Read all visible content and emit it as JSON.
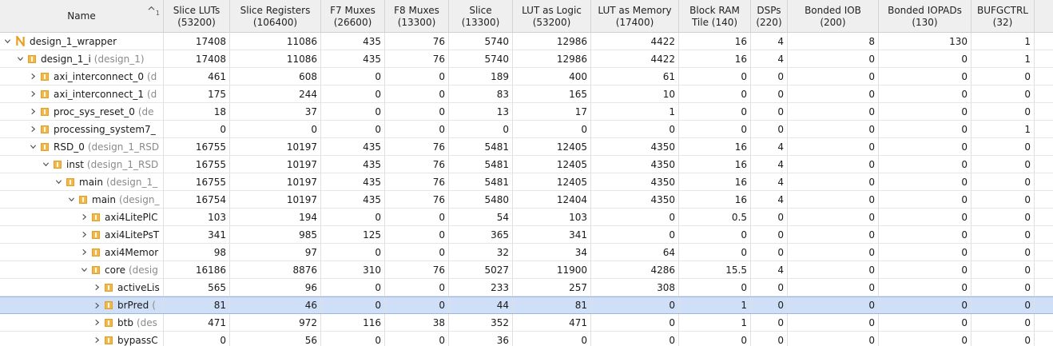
{
  "columns": [
    {
      "label": "Name"
    },
    {
      "label": "Slice LUTs\n(53200)"
    },
    {
      "label": "Slice Registers\n(106400)"
    },
    {
      "label": "F7 Muxes\n(26600)"
    },
    {
      "label": "F8 Muxes\n(13300)"
    },
    {
      "label": "Slice\n(13300)"
    },
    {
      "label": "LUT as Logic\n(53200)"
    },
    {
      "label": "LUT as Memory\n(17400)"
    },
    {
      "label": "Block RAM\nTile (140)"
    },
    {
      "label": "DSPs\n(220)"
    },
    {
      "label": "Bonded IOB\n(200)"
    },
    {
      "label": "Bonded IOPADs\n(130)"
    },
    {
      "label": "BUFGCTRL\n(32)"
    }
  ],
  "sort_index": "1",
  "rows": [
    {
      "depth": 0,
      "icon": "top",
      "name": "design_1_wrapper",
      "module": "",
      "vals": [
        "17408",
        "11086",
        "435",
        "76",
        "5740",
        "12986",
        "4422",
        "16",
        "4",
        "8",
        "130",
        "1"
      ],
      "expanded": true,
      "selected": false
    },
    {
      "depth": 1,
      "icon": "inst",
      "name": "design_1_i",
      "module": "(design_1)",
      "vals": [
        "17408",
        "11086",
        "435",
        "76",
        "5740",
        "12986",
        "4422",
        "16",
        "4",
        "0",
        "0",
        "1"
      ],
      "expanded": true,
      "selected": false
    },
    {
      "depth": 2,
      "icon": "inst",
      "name": "axi_interconnect_0",
      "module": "(d",
      "vals": [
        "461",
        "608",
        "0",
        "0",
        "189",
        "400",
        "61",
        "0",
        "0",
        "0",
        "0",
        "0"
      ],
      "expanded": false,
      "selected": false
    },
    {
      "depth": 2,
      "icon": "inst",
      "name": "axi_interconnect_1",
      "module": "(d",
      "vals": [
        "175",
        "244",
        "0",
        "0",
        "83",
        "165",
        "10",
        "0",
        "0",
        "0",
        "0",
        "0"
      ],
      "expanded": false,
      "selected": false
    },
    {
      "depth": 2,
      "icon": "inst",
      "name": "proc_sys_reset_0",
      "module": "(de",
      "vals": [
        "18",
        "37",
        "0",
        "0",
        "13",
        "17",
        "1",
        "0",
        "0",
        "0",
        "0",
        "0"
      ],
      "expanded": false,
      "selected": false
    },
    {
      "depth": 2,
      "icon": "inst",
      "name": "processing_system7_",
      "module": "",
      "vals": [
        "0",
        "0",
        "0",
        "0",
        "0",
        "0",
        "0",
        "0",
        "0",
        "0",
        "0",
        "1"
      ],
      "expanded": false,
      "selected": false
    },
    {
      "depth": 2,
      "icon": "inst",
      "name": "RSD_0",
      "module": "(design_1_RSD",
      "vals": [
        "16755",
        "10197",
        "435",
        "76",
        "5481",
        "12405",
        "4350",
        "16",
        "4",
        "0",
        "0",
        "0"
      ],
      "expanded": true,
      "selected": false
    },
    {
      "depth": 3,
      "icon": "inst",
      "name": "inst",
      "module": "(design_1_RSD",
      "vals": [
        "16755",
        "10197",
        "435",
        "76",
        "5481",
        "12405",
        "4350",
        "16",
        "4",
        "0",
        "0",
        "0"
      ],
      "expanded": true,
      "selected": false
    },
    {
      "depth": 4,
      "icon": "inst",
      "name": "main",
      "module": "(design_1_",
      "vals": [
        "16755",
        "10197",
        "435",
        "76",
        "5481",
        "12405",
        "4350",
        "16",
        "4",
        "0",
        "0",
        "0"
      ],
      "expanded": true,
      "selected": false
    },
    {
      "depth": 5,
      "icon": "inst",
      "name": "main",
      "module": "(design_",
      "vals": [
        "16754",
        "10197",
        "435",
        "76",
        "5480",
        "12404",
        "4350",
        "16",
        "4",
        "0",
        "0",
        "0"
      ],
      "expanded": true,
      "selected": false
    },
    {
      "depth": 6,
      "icon": "inst",
      "name": "axi4LitePlC",
      "module": "",
      "vals": [
        "103",
        "194",
        "0",
        "0",
        "54",
        "103",
        "0",
        "0.5",
        "0",
        "0",
        "0",
        "0"
      ],
      "expanded": false,
      "selected": false
    },
    {
      "depth": 6,
      "icon": "inst",
      "name": "axi4LitePsT",
      "module": "",
      "vals": [
        "341",
        "985",
        "125",
        "0",
        "365",
        "341",
        "0",
        "0",
        "0",
        "0",
        "0",
        "0"
      ],
      "expanded": false,
      "selected": false
    },
    {
      "depth": 6,
      "icon": "inst",
      "name": "axi4Memor",
      "module": "",
      "vals": [
        "98",
        "97",
        "0",
        "0",
        "32",
        "34",
        "64",
        "0",
        "0",
        "0",
        "0",
        "0"
      ],
      "expanded": false,
      "selected": false
    },
    {
      "depth": 6,
      "icon": "inst",
      "name": "core",
      "module": "(desig",
      "vals": [
        "16186",
        "8876",
        "310",
        "76",
        "5027",
        "11900",
        "4286",
        "15.5",
        "4",
        "0",
        "0",
        "0"
      ],
      "expanded": true,
      "selected": false
    },
    {
      "depth": 7,
      "icon": "inst",
      "name": "activeLis",
      "module": "",
      "vals": [
        "565",
        "96",
        "0",
        "0",
        "233",
        "257",
        "308",
        "0",
        "0",
        "0",
        "0",
        "0"
      ],
      "expanded": false,
      "selected": false
    },
    {
      "depth": 7,
      "icon": "inst",
      "name": "brPred",
      "module": "(",
      "vals": [
        "81",
        "46",
        "0",
        "0",
        "44",
        "81",
        "0",
        "1",
        "0",
        "0",
        "0",
        "0"
      ],
      "expanded": false,
      "selected": true
    },
    {
      "depth": 7,
      "icon": "inst",
      "name": "btb",
      "module": "(des",
      "vals": [
        "471",
        "972",
        "116",
        "38",
        "352",
        "471",
        "0",
        "1",
        "0",
        "0",
        "0",
        "0"
      ],
      "expanded": false,
      "selected": false
    },
    {
      "depth": 7,
      "icon": "inst",
      "name": "bypassC",
      "module": "",
      "vals": [
        "0",
        "56",
        "0",
        "0",
        "36",
        "0",
        "0",
        "0",
        "0",
        "0",
        "0",
        "0"
      ],
      "expanded": false,
      "selected": false
    }
  ],
  "colors": {
    "header_bg": "#efefef",
    "selected_bg": "#cfdff7",
    "icon_orange": "#f6b640",
    "top_icon": "#e8a020"
  }
}
